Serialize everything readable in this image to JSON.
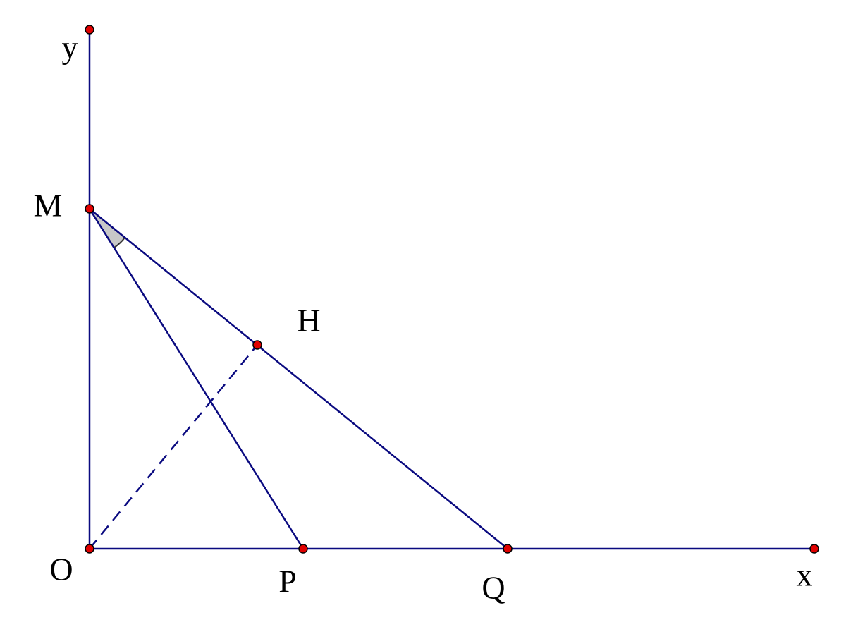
{
  "nodes": [
    {
      "label": "y"
    },
    {
      "label": "M"
    },
    {
      "label": "H"
    },
    {
      "label": "O"
    },
    {
      "label": "P"
    },
    {
      "label": "Q"
    },
    {
      "label": "x"
    }
  ]
}
